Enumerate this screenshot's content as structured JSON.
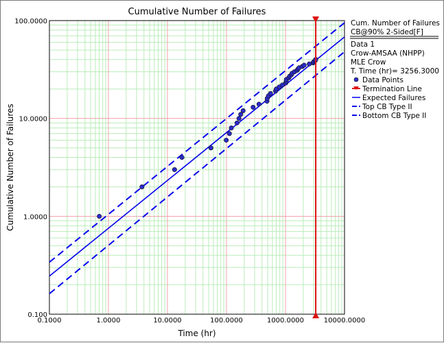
{
  "chart_data": {
    "type": "scatter",
    "title": "Cumulative Number of Failures",
    "xlabel": "Time (hr)",
    "ylabel": "Cumulative Number of Failures",
    "xscale": "log",
    "yscale": "log",
    "xlim": [
      0.1,
      10000
    ],
    "ylim": [
      0.1,
      100
    ],
    "x_ticks": [
      "0.1000",
      "1.0000",
      "10.0000",
      "100.0000",
      "1000.0000",
      "10000.0000"
    ],
    "y_ticks": [
      "0.100",
      "1.0000",
      "10.0000",
      "100.0000"
    ],
    "grid": true,
    "legend_position": "right",
    "legend": {
      "header": "Cum. Number of Failures",
      "subheader": "CB@90% 2-Sided[F]",
      "data_label": "Data 1",
      "model": "Crow-AMSAA (NHPP)",
      "method": "MLE Crow",
      "termination_time": "T. Time (hr)= 3256.3000",
      "entries": [
        "Data Points",
        "Termination Line",
        "Expected Failures",
        "Top CB Type II",
        "Bottom CB Type II"
      ]
    },
    "colors": {
      "data_points": "#2b2bc8",
      "fit_line": "#0000ee",
      "termination": "#dd1111",
      "grid_major": "#f0a0a8",
      "grid_minor": "#b8ecb8"
    },
    "termination_time": 3256.3,
    "data_points": [
      [
        0.7,
        1
      ],
      [
        3.7,
        2
      ],
      [
        13.2,
        3
      ],
      [
        17.6,
        4
      ],
      [
        54.5,
        5
      ],
      [
        99.2,
        6
      ],
      [
        112.2,
        7
      ],
      [
        120.9,
        8
      ],
      [
        151,
        9
      ],
      [
        163,
        10
      ],
      [
        174.5,
        11
      ],
      [
        191.6,
        12
      ],
      [
        282.8,
        13
      ],
      [
        355.2,
        14
      ],
      [
        486.3,
        15
      ],
      [
        490.5,
        16
      ],
      [
        513.3,
        17
      ],
      [
        558.4,
        18
      ],
      [
        678.1,
        19
      ],
      [
        699,
        20
      ],
      [
        785.9,
        21
      ],
      [
        887,
        22
      ],
      [
        1010.7,
        23
      ],
      [
        1029.1,
        24
      ],
      [
        1034.4,
        25
      ],
      [
        1136.1,
        26
      ],
      [
        1178.9,
        27
      ],
      [
        1259.7,
        28
      ],
      [
        1297.9,
        29
      ],
      [
        1419.7,
        30
      ],
      [
        1571.7,
        31
      ],
      [
        1629.8,
        32
      ],
      [
        1702.4,
        33
      ],
      [
        1928.9,
        34
      ],
      [
        2072.3,
        35
      ],
      [
        2525.2,
        36
      ],
      [
        2928.5,
        37
      ],
      [
        3016.4,
        38
      ],
      [
        3181,
        39
      ],
      [
        3256.3,
        40
      ]
    ],
    "expected_failures": {
      "x": [
        0.1,
        10000
      ],
      "y": [
        0.245,
        68
      ]
    },
    "top_cb": {
      "x": [
        0.1,
        10000
      ],
      "y": [
        0.34,
        95
      ]
    },
    "bottom_cb": {
      "x": [
        0.1,
        10000
      ],
      "y": [
        0.162,
        48
      ]
    }
  }
}
